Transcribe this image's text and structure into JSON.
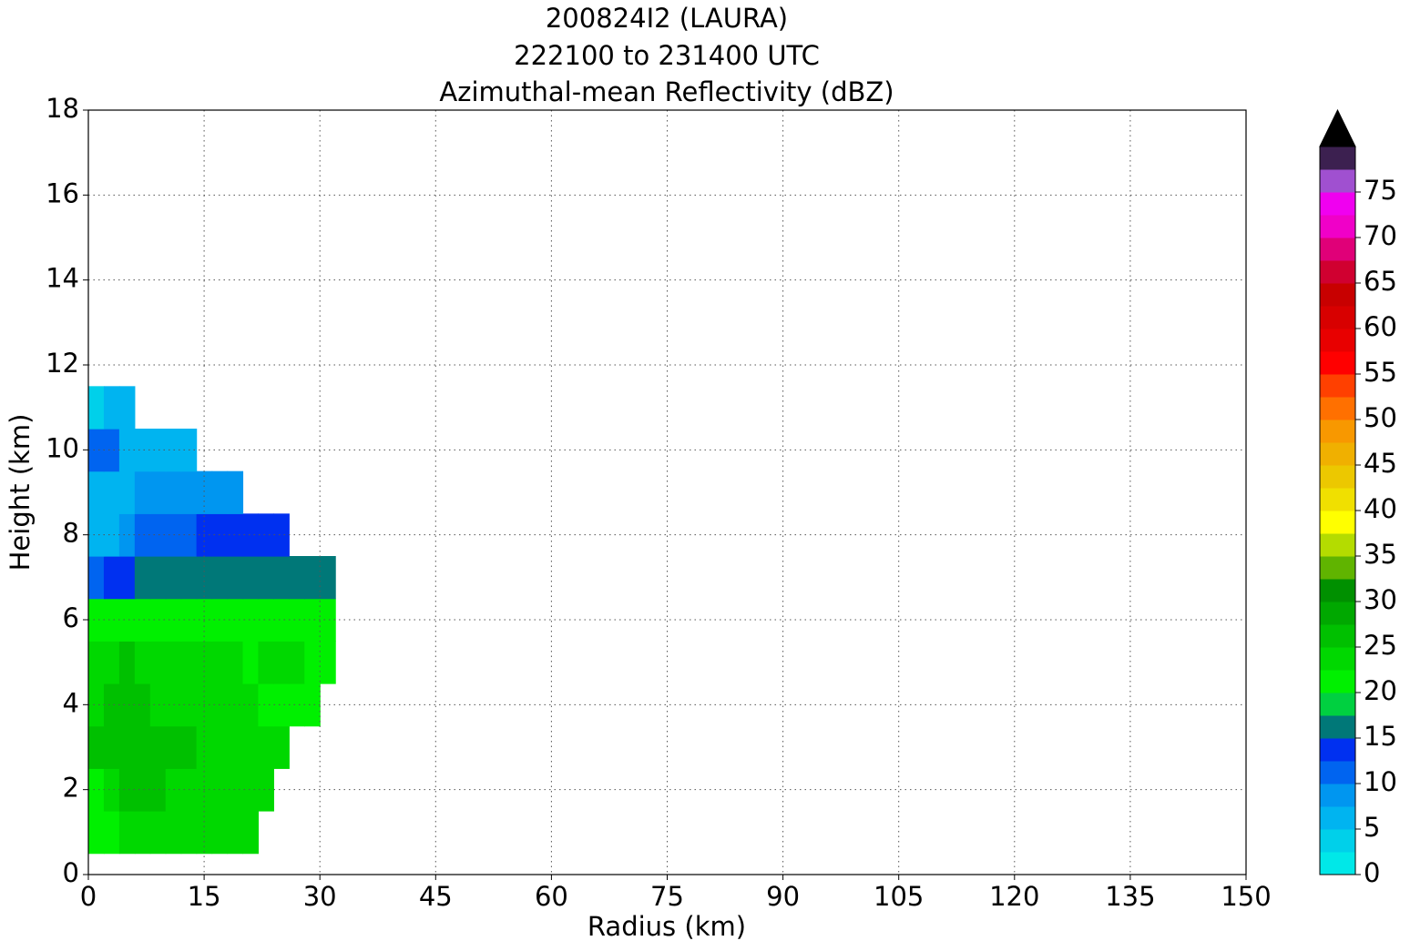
{
  "chart_data": {
    "type": "heatmap",
    "title_lines": [
      "200824I2 (LAURA)",
      "222100 to 231400 UTC",
      "Azimuthal-mean Reflectivity (dBZ)"
    ],
    "xlabel": "Radius (km)",
    "ylabel": "Height (km)",
    "xlim": [
      0,
      150
    ],
    "ylim": [
      0,
      18
    ],
    "xticks": [
      0,
      15,
      30,
      45,
      60,
      75,
      90,
      105,
      120,
      135,
      150
    ],
    "yticks": [
      0,
      2,
      4,
      6,
      8,
      10,
      12,
      14,
      16,
      18
    ],
    "grid": true,
    "x_edges": [
      0,
      2,
      4,
      6,
      8,
      10,
      12,
      14,
      16,
      18,
      20,
      22,
      24,
      26,
      28,
      30,
      32
    ],
    "y_edges": [
      0.5,
      1.5,
      2.5,
      3.5,
      4.5,
      5.5,
      6.5,
      7.5,
      8.5,
      9.5,
      10.5,
      11.5
    ],
    "values": [
      [
        21,
        22,
        23,
        24,
        24,
        24,
        23,
        23,
        23,
        23,
        23,
        null,
        null,
        null,
        null,
        null
      ],
      [
        22,
        24,
        25,
        25,
        25,
        24,
        23,
        23,
        23,
        23,
        23,
        23,
        null,
        null,
        null,
        null
      ],
      [
        25,
        26,
        26,
        26,
        26,
        26,
        25,
        24,
        23,
        23,
        23,
        23,
        23,
        null,
        null,
        null
      ],
      [
        24,
        25,
        25,
        25,
        24,
        24,
        23,
        23,
        23,
        23,
        23,
        22,
        22,
        22,
        21,
        null
      ],
      [
        23,
        24,
        25,
        24,
        23,
        23,
        23,
        23,
        23,
        23,
        22,
        23,
        23,
        23,
        22,
        21
      ],
      [
        21,
        21,
        21,
        21,
        21,
        21,
        21,
        21,
        21,
        21,
        21,
        21,
        21,
        21,
        21,
        21
      ],
      [
        12,
        13,
        14,
        15,
        15,
        16,
        16,
        16,
        16,
        16,
        16,
        16,
        16,
        16,
        16,
        16
      ],
      [
        6,
        7,
        8,
        11,
        11,
        12,
        12,
        13,
        13,
        13,
        14,
        14,
        14,
        null,
        null,
        null
      ],
      [
        7,
        7,
        7,
        9,
        9,
        9,
        9,
        9,
        9,
        9,
        null,
        null,
        null,
        null,
        null,
        null
      ],
      [
        11,
        10,
        7,
        6,
        6,
        6,
        6,
        null,
        null,
        null,
        null,
        null,
        null,
        null,
        null,
        null
      ],
      [
        4,
        5,
        6,
        null,
        null,
        null,
        null,
        null,
        null,
        null,
        null,
        null,
        null,
        null,
        null,
        null
      ]
    ],
    "colorbar": {
      "levels": [
        0,
        2.5,
        5,
        7.5,
        10,
        12.5,
        15,
        17.5,
        20,
        22.5,
        25,
        27.5,
        30,
        32.5,
        35,
        37.5,
        40,
        42.5,
        45,
        47.5,
        50,
        52.5,
        55,
        57.5,
        60,
        62.5,
        65,
        67.5,
        70,
        72.5,
        75,
        77.5,
        80
      ],
      "colors": [
        "#00e8e8",
        "#00d0ea",
        "#00b4f0",
        "#0096f0",
        "#0064f0",
        "#0030f0",
        "#007878",
        "#00d040",
        "#00f000",
        "#00d800",
        "#00c000",
        "#00a800",
        "#009000",
        "#60b400",
        "#b4dc00",
        "#ffff00",
        "#f0e000",
        "#ecc800",
        "#f0b000",
        "#f89800",
        "#ff7000",
        "#ff4000",
        "#ff0000",
        "#e80000",
        "#d80000",
        "#c80000",
        "#d00030",
        "#e00078",
        "#f000c8",
        "#f000f0",
        "#d040e0",
        "#a050d0"
      ],
      "extend_colors": [
        "#7040a0",
        "#3c2050",
        "#000000"
      ],
      "ticks": [
        0,
        5,
        10,
        15,
        20,
        25,
        30,
        35,
        40,
        45,
        50,
        55,
        60,
        65,
        70,
        75
      ]
    }
  }
}
